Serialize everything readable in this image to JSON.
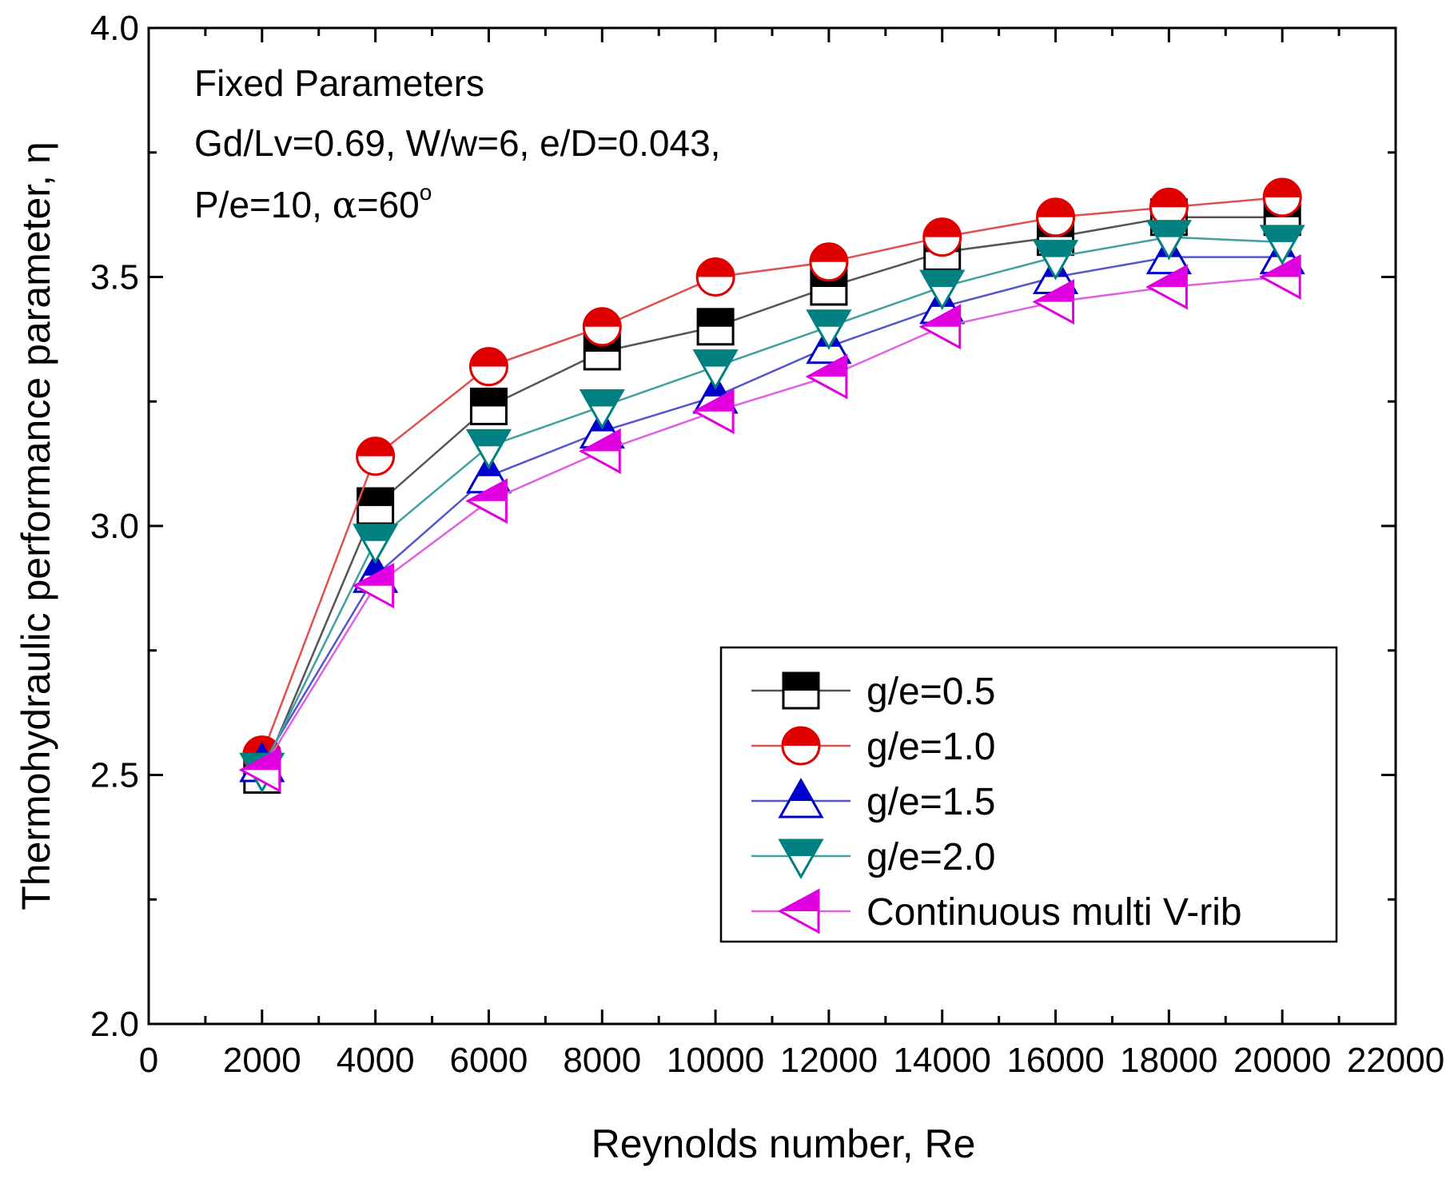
{
  "chart_data": {
    "type": "line",
    "xlabel": "Reynolds number, Re",
    "ylabel": "Thermohydraulic performance parameter, η",
    "xlim": [
      0,
      22000
    ],
    "ylim": [
      2.0,
      4.0
    ],
    "x_ticks": [
      0,
      2000,
      4000,
      6000,
      8000,
      10000,
      12000,
      14000,
      16000,
      18000,
      20000,
      22000
    ],
    "y_ticks": [
      "2.0",
      "2.5",
      "3.0",
      "3.5",
      "4.0"
    ],
    "x": [
      2000,
      4000,
      6000,
      8000,
      10000,
      12000,
      14000,
      16000,
      18000,
      20000
    ],
    "annotation": {
      "line1": "Fixed Parameters",
      "line2": "Gd/Lv=0.69, W/w=6, e/D=0.043,",
      "line3_prefix": "P/e=10, ",
      "line3_alpha": "α",
      "line3_eq": "=60",
      "line3_deg": "o"
    },
    "legend_position": "bottom-right",
    "series": [
      {
        "name": "g/e=0.5",
        "marker": "square",
        "color": "#000000",
        "line_color": "#555555",
        "values": [
          2.5,
          3.04,
          3.24,
          3.35,
          3.4,
          3.48,
          3.55,
          3.58,
          3.62,
          3.62
        ]
      },
      {
        "name": "g/e=1.0",
        "marker": "circle",
        "color": "#e00000",
        "line_color": "#e05050",
        "values": [
          2.54,
          3.14,
          3.32,
          3.4,
          3.5,
          3.53,
          3.58,
          3.62,
          3.64,
          3.66
        ]
      },
      {
        "name": "g/e=1.5",
        "marker": "triangle-up",
        "color": "#0000cc",
        "line_color": "#5555cc",
        "values": [
          2.52,
          2.9,
          3.1,
          3.19,
          3.26,
          3.36,
          3.44,
          3.5,
          3.54,
          3.54
        ]
      },
      {
        "name": "g/e=2.0",
        "marker": "triangle-down",
        "color": "#008080",
        "line_color": "#40a0a0",
        "values": [
          2.51,
          2.97,
          3.16,
          3.24,
          3.32,
          3.4,
          3.48,
          3.54,
          3.58,
          3.57
        ]
      },
      {
        "name": "Continuous multi V-rib",
        "marker": "triangle-left",
        "color": "#e000e0",
        "line_color": "#e060e0",
        "values": [
          2.51,
          2.88,
          3.05,
          3.15,
          3.23,
          3.3,
          3.4,
          3.45,
          3.48,
          3.5
        ]
      }
    ]
  }
}
